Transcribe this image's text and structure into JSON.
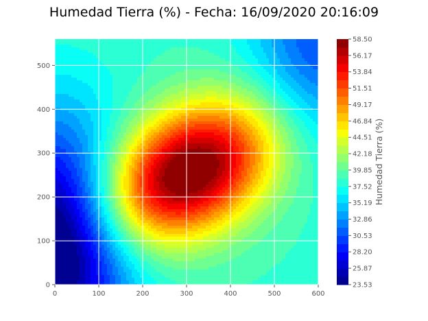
{
  "chart_data": {
    "type": "heatmap",
    "subtype": "filled-contour",
    "title": "Humedad Tierra (%) - Fecha: 16/09/2020 20:16:09",
    "xlabel": "",
    "ylabel": "",
    "xlim": [
      0,
      600
    ],
    "ylim": [
      0,
      560
    ],
    "x_ticks": [
      "0",
      "100",
      "200",
      "300",
      "400",
      "500",
      "600"
    ],
    "y_ticks": [
      "0",
      "100",
      "200",
      "300",
      "400",
      "500"
    ],
    "grid": true,
    "colormap": "jet",
    "colorbar": {
      "label": "Humedad Tierra (%)",
      "min": 23.53,
      "max": 58.5,
      "levels": 30,
      "tick_labels": [
        "58.50",
        "56.17",
        "53.84",
        "51.51",
        "49.17",
        "46.84",
        "44.51",
        "42.18",
        "39.85",
        "37.52",
        "35.19",
        "32.86",
        "30.53",
        "28.20",
        "25.87",
        "23.53"
      ]
    },
    "features": [
      {
        "kind": "maximum",
        "x": 300,
        "y": 255,
        "value": 58.5
      },
      {
        "kind": "minimum",
        "x": 0,
        "y": 90,
        "value": 23.53
      },
      {
        "kind": "local-low",
        "x": 600,
        "y": 540,
        "value": 34.0
      }
    ]
  }
}
